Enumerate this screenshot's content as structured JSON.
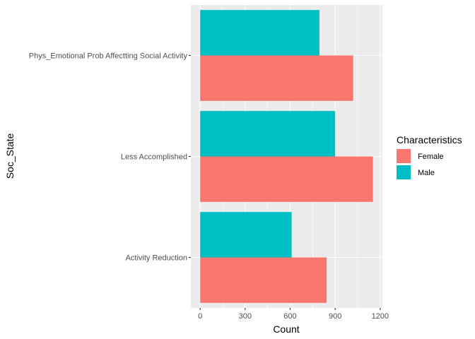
{
  "chart_data": {
    "type": "bar",
    "orientation": "horizontal",
    "categories": [
      "Activity Reduction",
      "Less Accomplished",
      "Phys_Emotional Prob Affectting Social Activity"
    ],
    "series": [
      {
        "name": "Female",
        "color": "#F8766D",
        "values": [
          843,
          1152,
          1020
        ]
      },
      {
        "name": "Male",
        "color": "#00BFC4",
        "values": [
          610,
          900,
          795
        ]
      }
    ],
    "xlabel": "Count",
    "ylabel": "Soc_State",
    "xlim": [
      -62,
      1215
    ],
    "xticks": [
      0,
      300,
      600,
      900,
      1200
    ],
    "grid": true,
    "legend": {
      "title": "Characteristics",
      "position": "right"
    }
  }
}
